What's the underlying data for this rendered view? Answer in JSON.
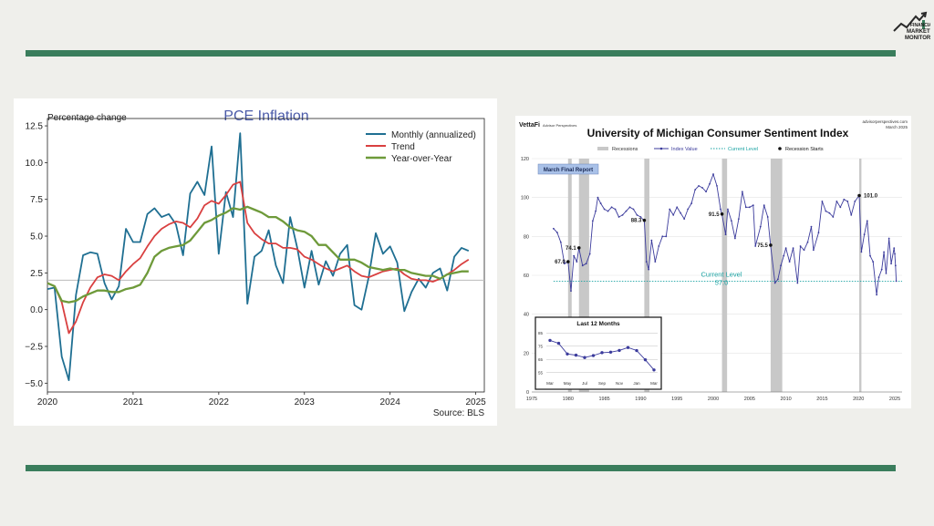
{
  "logo": {
    "text": "FINANCIAL MARKET MONITOR"
  },
  "colors": {
    "rule": "#3a7d5c",
    "background": "#efefeb"
  },
  "chart_data": [
    {
      "type": "line",
      "title": "PCE Inflation",
      "ylabel": "Percentage change",
      "source": "Source: BLS",
      "xlim": [
        2020,
        2025.1
      ],
      "ylim": [
        -5.6,
        13.0
      ],
      "x_ticks": [
        2020,
        2021,
        2022,
        2023,
        2024,
        2025
      ],
      "x_tick_labels": [
        "2020",
        "2021",
        "2022",
        "2023",
        "2024",
        "2025"
      ],
      "y_ticks": [
        -5,
        -2.5,
        0,
        2.5,
        5,
        7.5,
        10,
        12.5
      ],
      "y_tick_labels": [
        "−5.0",
        "−2.5",
        "0.0",
        "2.5",
        "5.0",
        "7.5",
        "10.0",
        "12.5"
      ],
      "reference_line": 2.0,
      "legend_position": "top-right",
      "grid": false,
      "x_start": 2020.0,
      "x_step_months": 1,
      "series": [
        {
          "name": "Monthly (annualized)",
          "color": "#1f6f92",
          "values": [
            1.4,
            1.5,
            -3.2,
            -4.8,
            1.0,
            3.7,
            3.9,
            3.8,
            1.8,
            0.7,
            1.6,
            5.5,
            4.6,
            4.6,
            6.5,
            6.9,
            6.3,
            6.5,
            5.8,
            3.7,
            7.9,
            8.7,
            7.8,
            11.1,
            3.8,
            8.0,
            6.3,
            12.0,
            0.4,
            3.6,
            4.0,
            5.4,
            3.0,
            1.8,
            6.3,
            4.2,
            1.5,
            4.0,
            1.7,
            3.3,
            2.3,
            3.8,
            4.4,
            0.3,
            0.0,
            2.2,
            5.2,
            3.8,
            4.3,
            3.2,
            -0.1,
            1.2,
            2.1,
            1.5,
            2.5,
            2.8,
            1.3,
            3.6,
            4.2,
            4.0
          ]
        },
        {
          "name": "Trend",
          "color": "#d94040",
          "values": [
            1.8,
            1.6,
            0.5,
            -1.6,
            -0.8,
            0.5,
            1.5,
            2.2,
            2.4,
            2.3,
            2.0,
            2.6,
            3.1,
            3.5,
            4.3,
            5.0,
            5.5,
            5.8,
            6.0,
            5.9,
            5.6,
            6.2,
            7.1,
            7.4,
            7.2,
            7.8,
            8.5,
            8.7,
            5.9,
            5.2,
            4.8,
            4.5,
            4.5,
            4.2,
            4.2,
            4.1,
            3.6,
            3.4,
            3.1,
            2.8,
            2.6,
            2.8,
            3.0,
            2.6,
            2.3,
            2.2,
            2.4,
            2.6,
            2.7,
            2.8,
            2.4,
            2.1,
            2.0,
            2.0,
            1.9,
            2.1,
            2.4,
            2.7,
            3.1,
            3.4
          ]
        },
        {
          "name": "Year-over-Year",
          "color": "#6e9a3a",
          "values": [
            1.8,
            1.6,
            0.6,
            0.5,
            0.6,
            0.9,
            1.1,
            1.3,
            1.3,
            1.2,
            1.2,
            1.4,
            1.5,
            1.7,
            2.5,
            3.6,
            4.0,
            4.2,
            4.3,
            4.4,
            4.7,
            5.3,
            5.9,
            6.1,
            6.4,
            6.6,
            6.9,
            6.8,
            7.0,
            6.8,
            6.6,
            6.3,
            6.3,
            6.0,
            5.6,
            5.4,
            5.3,
            5.0,
            4.4,
            4.4,
            3.9,
            3.4,
            3.4,
            3.4,
            3.2,
            2.9,
            2.8,
            2.7,
            2.8,
            2.7,
            2.7,
            2.5,
            2.4,
            2.3,
            2.3,
            2.1,
            2.4,
            2.5,
            2.6,
            2.6
          ]
        }
      ]
    },
    {
      "type": "line",
      "title": "University of Michigan Consumer Sentiment Index",
      "brand": "VettaFi",
      "brand_sub": "Advisor Perspectives",
      "site": "advisorperspectives.com",
      "date_label": "March 2025",
      "badge": "March Final Report",
      "xlim": [
        1975,
        2026
      ],
      "ylim": [
        0,
        120
      ],
      "x_ticks": [
        1975,
        1980,
        1985,
        1990,
        1995,
        2000,
        2005,
        2010,
        2015,
        2020,
        2025
      ],
      "x_tick_labels": [
        "1975",
        "1980",
        "1985",
        "1990",
        "1995",
        "2000",
        "2005",
        "2010",
        "2015",
        "2020",
        "2025"
      ],
      "y_ticks": [
        0,
        20,
        40,
        60,
        80,
        100,
        120
      ],
      "y_tick_labels": [
        "0",
        "20",
        "40",
        "60",
        "80",
        "100",
        "120"
      ],
      "legend": {
        "recessions": "Recessions",
        "index": "Index Value",
        "current": "Current Level",
        "starts": "Recession Starts"
      },
      "current_level": {
        "value": 57.0,
        "label": "Current Level",
        "value_label": "57.0"
      },
      "recessions": [
        [
          1980.0,
          1980.5
        ],
        [
          1981.5,
          1982.9
        ],
        [
          1990.5,
          1991.2
        ],
        [
          2001.2,
          2001.9
        ],
        [
          2007.9,
          2009.5
        ],
        [
          2020.1,
          2020.4
        ]
      ],
      "recession_starts": [
        {
          "x": 1980.0,
          "y": 67.0,
          "label": "67.0"
        },
        {
          "x": 1981.5,
          "y": 74.1,
          "label": "74.1"
        },
        {
          "x": 1990.5,
          "y": 88.3,
          "label": "88.3"
        },
        {
          "x": 2001.2,
          "y": 91.5,
          "label": "91.5"
        },
        {
          "x": 2007.9,
          "y": 75.5,
          "label": "75.5"
        },
        {
          "x": 2020.1,
          "y": 101.0,
          "label": "101.0"
        }
      ],
      "series": [
        {
          "name": "Index Value",
          "color": "#3b3b9c",
          "points": [
            [
              1978.0,
              84
            ],
            [
              1978.5,
              82
            ],
            [
              1979.0,
              77
            ],
            [
              1979.5,
              66
            ],
            [
              1980.0,
              67
            ],
            [
              1980.4,
              52
            ],
            [
              1980.8,
              70
            ],
            [
              1981.2,
              67
            ],
            [
              1981.5,
              74
            ],
            [
              1982.0,
              65
            ],
            [
              1982.5,
              66
            ],
            [
              1983.0,
              71
            ],
            [
              1983.4,
              88
            ],
            [
              1983.8,
              93
            ],
            [
              1984.1,
              100
            ],
            [
              1984.5,
              97
            ],
            [
              1985.0,
              94
            ],
            [
              1985.5,
              93
            ],
            [
              1986.0,
              95
            ],
            [
              1986.5,
              94
            ],
            [
              1987.0,
              90
            ],
            [
              1987.5,
              91
            ],
            [
              1988.0,
              93
            ],
            [
              1988.5,
              95
            ],
            [
              1989.0,
              94
            ],
            [
              1989.5,
              91
            ],
            [
              1990.0,
              90
            ],
            [
              1990.5,
              88
            ],
            [
              1990.8,
              67
            ],
            [
              1991.1,
              63
            ],
            [
              1991.5,
              78
            ],
            [
              1992.0,
              67
            ],
            [
              1992.5,
              75
            ],
            [
              1993.0,
              80
            ],
            [
              1993.5,
              80
            ],
            [
              1994.0,
              94
            ],
            [
              1994.5,
              91
            ],
            [
              1995.0,
              95
            ],
            [
              1995.5,
              92
            ],
            [
              1996.0,
              89
            ],
            [
              1996.5,
              94
            ],
            [
              1997.0,
              97
            ],
            [
              1997.5,
              104
            ],
            [
              1998.0,
              106
            ],
            [
              1998.5,
              105
            ],
            [
              1999.0,
              103
            ],
            [
              1999.5,
              107
            ],
            [
              2000.0,
              112
            ],
            [
              2000.5,
              106
            ],
            [
              2001.0,
              94
            ],
            [
              2001.2,
              91
            ],
            [
              2001.7,
              81
            ],
            [
              2002.0,
              94
            ],
            [
              2002.5,
              88
            ],
            [
              2003.0,
              79
            ],
            [
              2003.5,
              89
            ],
            [
              2004.0,
              103
            ],
            [
              2004.5,
              95
            ],
            [
              2005.0,
              95
            ],
            [
              2005.5,
              96
            ],
            [
              2005.8,
              75
            ],
            [
              2006.5,
              85
            ],
            [
              2007.0,
              96
            ],
            [
              2007.5,
              90
            ],
            [
              2007.9,
              75
            ],
            [
              2008.5,
              56
            ],
            [
              2008.9,
              58
            ],
            [
              2009.3,
              65
            ],
            [
              2009.7,
              70
            ],
            [
              2010.0,
              74
            ],
            [
              2010.5,
              67
            ],
            [
              2011.0,
              74
            ],
            [
              2011.6,
              56
            ],
            [
              2012.0,
              75
            ],
            [
              2012.5,
              73
            ],
            [
              2013.0,
              77
            ],
            [
              2013.5,
              85
            ],
            [
              2013.8,
              73
            ],
            [
              2014.5,
              82
            ],
            [
              2015.0,
              98
            ],
            [
              2015.5,
              93
            ],
            [
              2016.0,
              92
            ],
            [
              2016.5,
              90
            ],
            [
              2017.0,
              98
            ],
            [
              2017.5,
              95
            ],
            [
              2018.0,
              99
            ],
            [
              2018.5,
              98
            ],
            [
              2019.0,
              91
            ],
            [
              2019.5,
              98
            ],
            [
              2020.1,
              101
            ],
            [
              2020.4,
              72
            ],
            [
              2020.8,
              81
            ],
            [
              2021.2,
              88
            ],
            [
              2021.6,
              70
            ],
            [
              2022.0,
              67
            ],
            [
              2022.5,
              50
            ],
            [
              2022.8,
              59
            ],
            [
              2023.2,
              63
            ],
            [
              2023.5,
              72
            ],
            [
              2023.8,
              61
            ],
            [
              2024.2,
              79
            ],
            [
              2024.5,
              66
            ],
            [
              2024.9,
              74
            ],
            [
              2025.0,
              71
            ],
            [
              2025.1,
              65
            ],
            [
              2025.2,
              57
            ]
          ]
        }
      ],
      "inset": {
        "title": "Last 12 Months",
        "x_labels": [
          "Mar",
          "May",
          "Jul",
          "Sep",
          "Nov",
          "Jan",
          "Mar"
        ],
        "y_ticks": [
          55,
          65,
          75,
          85
        ],
        "y_tick_labels": [
          "55",
          "65",
          "75",
          "85"
        ],
        "ylim": [
          52,
          88
        ],
        "values": [
          79.4,
          77.2,
          69.1,
          68.2,
          66.4,
          67.9,
          70.1,
          70.5,
          71.8,
          74.0,
          71.7,
          64.7,
          57.0
        ]
      }
    }
  ]
}
